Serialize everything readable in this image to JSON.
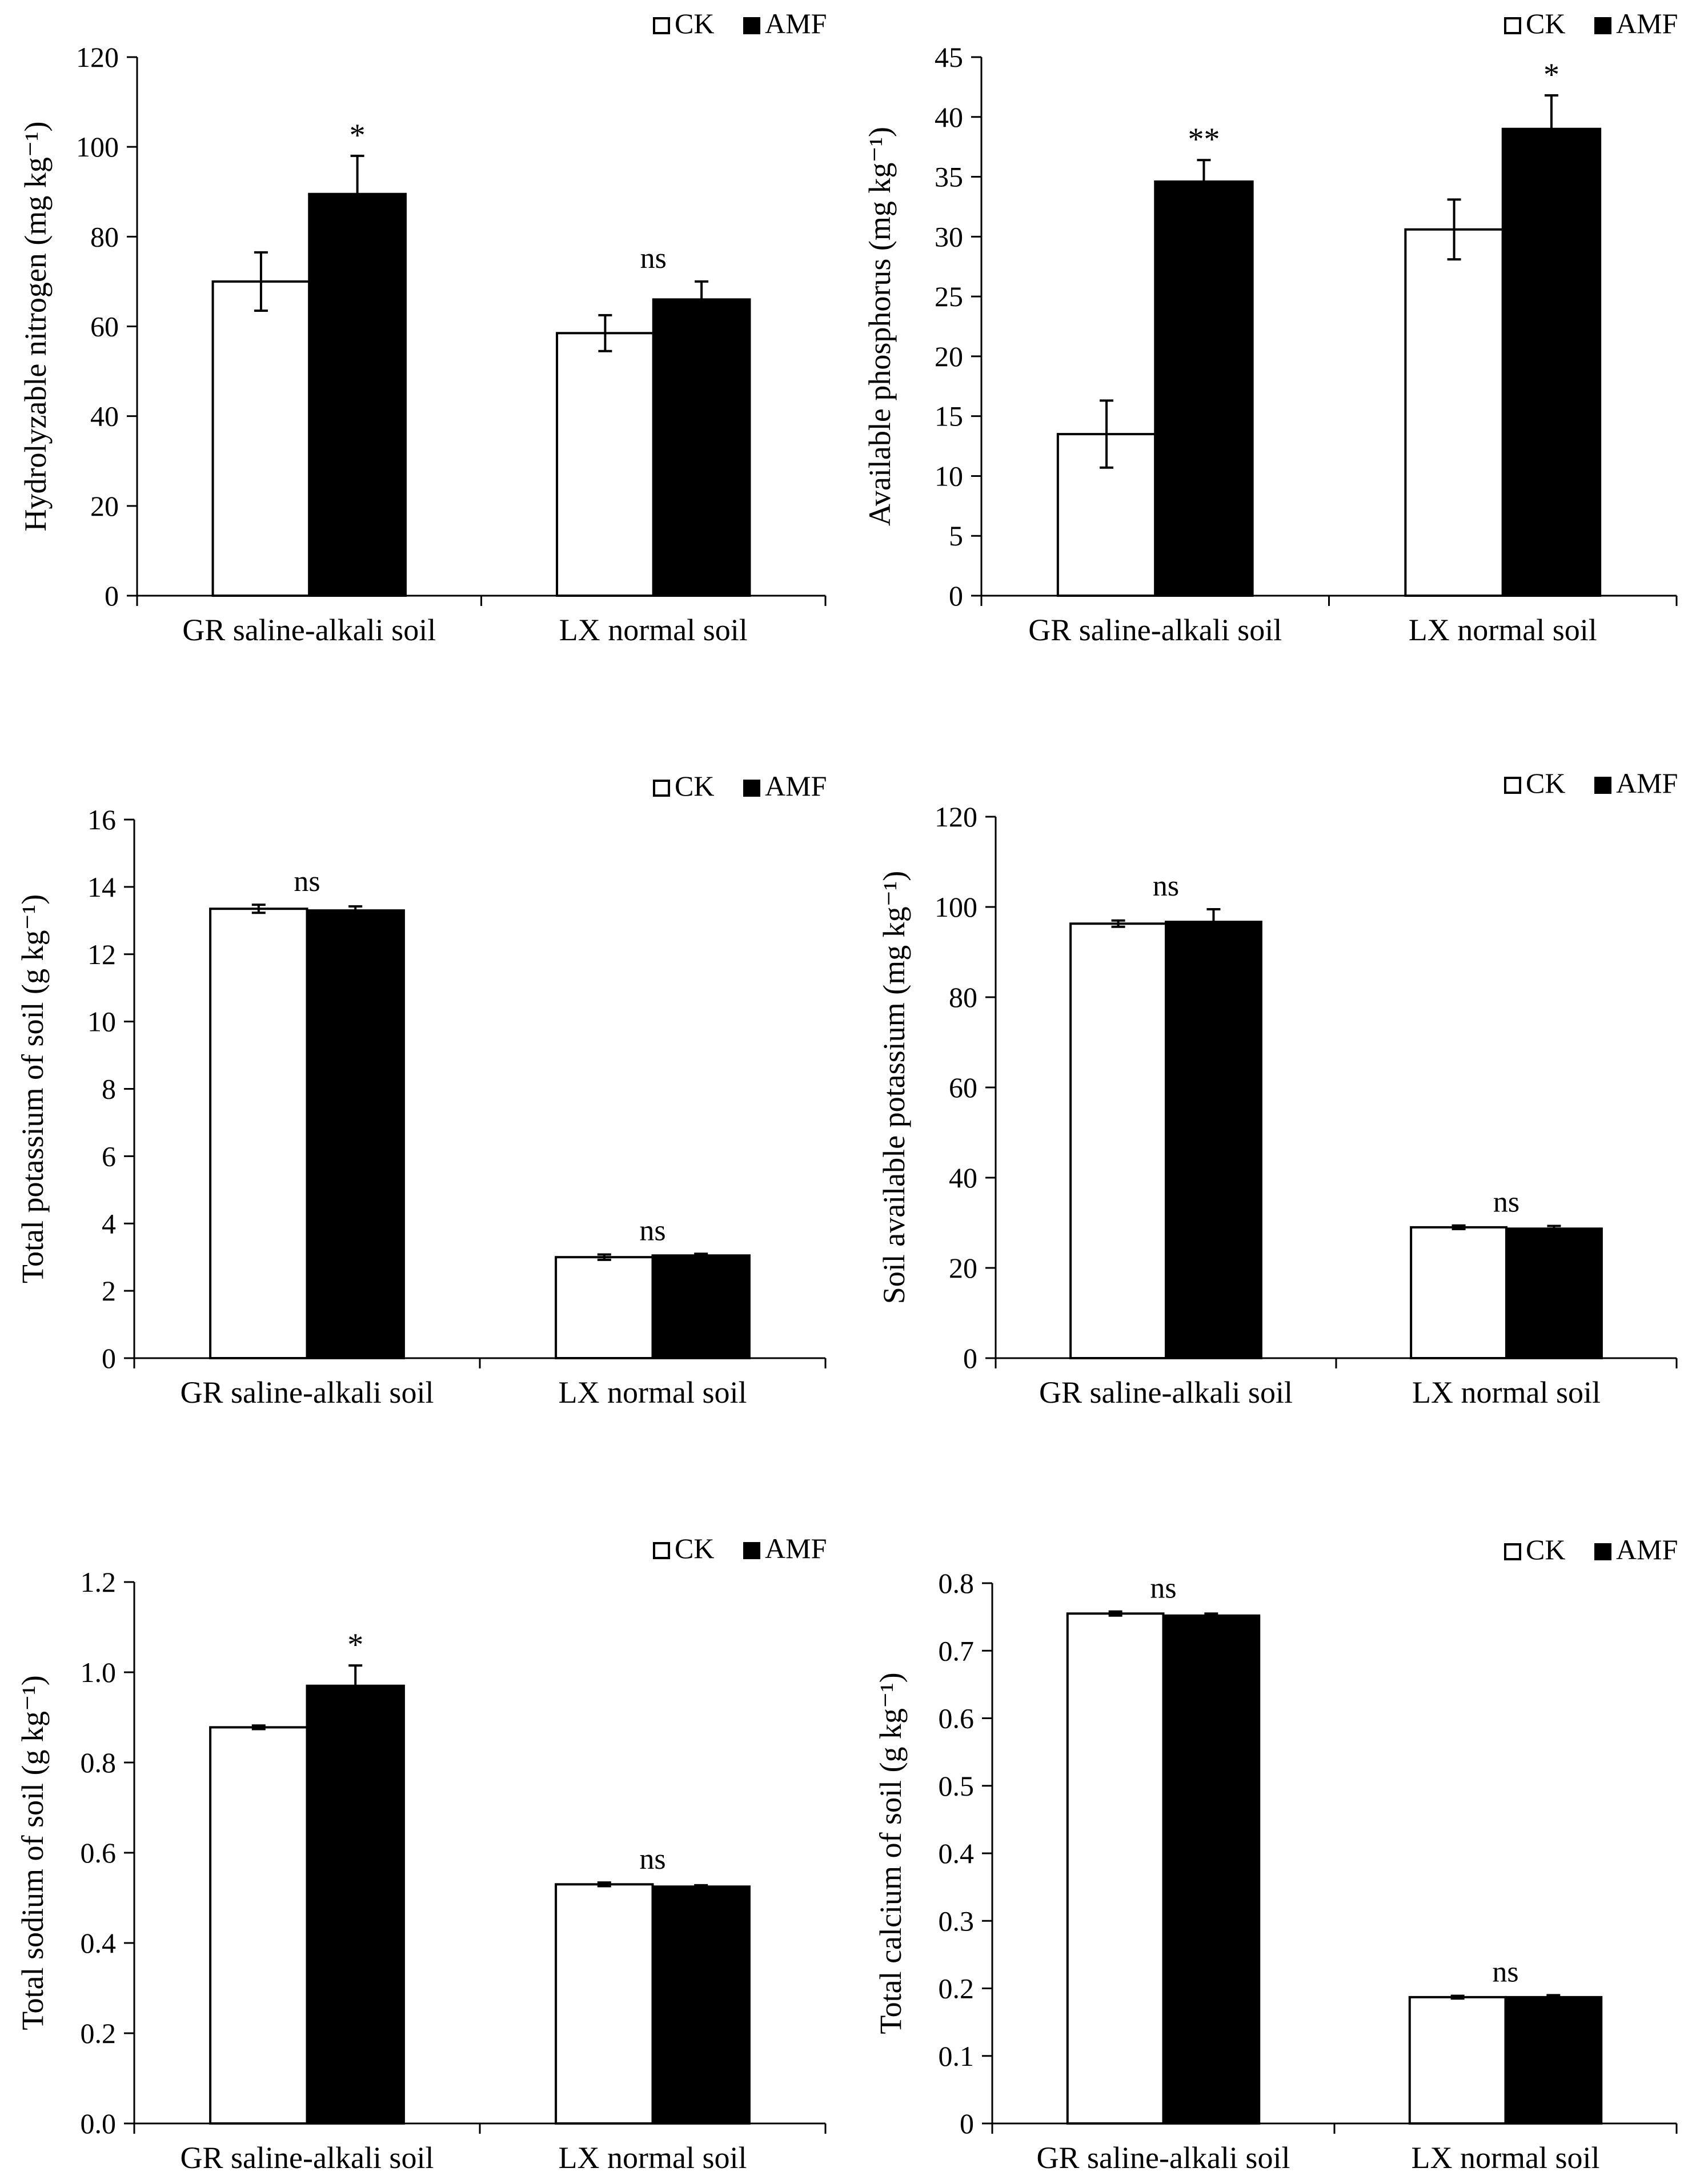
{
  "legend": {
    "ck": "CK",
    "amf": "AMF"
  },
  "chart_data": [
    {
      "type": "bar",
      "title": "",
      "xlabel": "",
      "ylabel": "Hydrolyzable nitrogen (mg kg⁻¹)",
      "categories": [
        "GR saline-alkali soil",
        "LX normal soil"
      ],
      "series": [
        {
          "name": "CK",
          "values": [
            70,
            58.5
          ],
          "errors": [
            6.5,
            4
          ]
        },
        {
          "name": "AMF",
          "values": [
            89.5,
            66
          ],
          "errors": [
            8.5,
            4
          ]
        }
      ],
      "significance": [
        "*",
        "ns"
      ],
      "ylim": [
        0,
        120
      ],
      "yticks": [
        0,
        20,
        40,
        60,
        80,
        100,
        120
      ],
      "ytick_labels": [
        "0",
        "20",
        "40",
        "60",
        "80",
        "100",
        "120"
      ],
      "legend_position": "top-right"
    },
    {
      "type": "bar",
      "title": "",
      "xlabel": "",
      "ylabel": "Available phosphorus (mg kg⁻¹)",
      "categories": [
        "GR saline-alkali soil",
        "LX normal soil"
      ],
      "series": [
        {
          "name": "CK",
          "values": [
            13.5,
            30.6
          ],
          "errors": [
            2.8,
            2.5
          ]
        },
        {
          "name": "AMF",
          "values": [
            34.6,
            39
          ],
          "errors": [
            1.8,
            2.8
          ]
        }
      ],
      "significance": [
        "**",
        "*"
      ],
      "ylim": [
        0,
        45
      ],
      "yticks": [
        0,
        5,
        10,
        15,
        20,
        25,
        30,
        35,
        40,
        45
      ],
      "ytick_labels": [
        "0",
        "5",
        "10",
        "15",
        "20",
        "25",
        "30",
        "35",
        "40",
        "45"
      ],
      "legend_position": "top-right"
    },
    {
      "type": "bar",
      "title": "",
      "xlabel": "",
      "ylabel": "Total potassium of soil (g kg⁻¹)",
      "categories": [
        "GR saline-alkali soil",
        "LX normal soil"
      ],
      "series": [
        {
          "name": "CK",
          "values": [
            13.35,
            3.0
          ],
          "errors": [
            0.12,
            0.08
          ]
        },
        {
          "name": "AMF",
          "values": [
            13.3,
            3.05
          ],
          "errors": [
            0.12,
            0.05
          ]
        }
      ],
      "significance": [
        "ns",
        "ns"
      ],
      "ylim": [
        0,
        16
      ],
      "yticks": [
        0,
        2,
        4,
        6,
        8,
        10,
        12,
        14,
        16
      ],
      "ytick_labels": [
        "0",
        "2",
        "4",
        "6",
        "8",
        "10",
        "12",
        "14",
        "16"
      ],
      "legend_position": "top-right"
    },
    {
      "type": "bar",
      "title": "",
      "xlabel": "",
      "ylabel": "Soil available potassium (mg kg⁻¹)",
      "categories": [
        "GR saline-alkali soil",
        "LX normal soil"
      ],
      "series": [
        {
          "name": "CK",
          "values": [
            96.3,
            29
          ],
          "errors": [
            0.7,
            0.4
          ]
        },
        {
          "name": "AMF",
          "values": [
            96.7,
            28.7
          ],
          "errors": [
            2.8,
            0.6
          ]
        }
      ],
      "significance": [
        "ns",
        "ns"
      ],
      "ylim": [
        0,
        120
      ],
      "yticks": [
        0,
        20,
        40,
        60,
        80,
        100,
        120
      ],
      "ytick_labels": [
        "0",
        "20",
        "40",
        "60",
        "80",
        "100",
        "120"
      ],
      "legend_position": "top-right"
    },
    {
      "type": "bar",
      "title": "",
      "xlabel": "",
      "ylabel": "Total sodium of soil (g kg⁻¹)",
      "categories": [
        "GR saline-alkali soil",
        "LX normal soil"
      ],
      "series": [
        {
          "name": "CK",
          "values": [
            0.878,
            0.53
          ],
          "errors": [
            0.004,
            0.004
          ]
        },
        {
          "name": "AMF",
          "values": [
            0.97,
            0.525
          ],
          "errors": [
            0.045,
            0.003
          ]
        }
      ],
      "significance": [
        "*",
        "ns"
      ],
      "ylim": [
        0,
        1.2
      ],
      "yticks": [
        0,
        0.2,
        0.4,
        0.6,
        0.8,
        1.0,
        1.2
      ],
      "ytick_labels": [
        "0.0",
        "0.2",
        "0.4",
        "0.6",
        "0.8",
        "1.0",
        "1.2"
      ],
      "legend_position": "top-right"
    },
    {
      "type": "bar",
      "title": "",
      "xlabel": "",
      "ylabel": "Total calcium of soil (g kg⁻¹)",
      "categories": [
        "GR saline-alkali soil",
        "LX normal soil"
      ],
      "series": [
        {
          "name": "CK",
          "values": [
            0.755,
            0.187
          ],
          "errors": [
            0.003,
            0.002
          ]
        },
        {
          "name": "AMF",
          "values": [
            0.752,
            0.187
          ],
          "errors": [
            0.003,
            0.003
          ]
        }
      ],
      "significance": [
        "ns",
        "ns"
      ],
      "ylim": [
        0,
        0.8
      ],
      "yticks": [
        0,
        0.1,
        0.2,
        0.3,
        0.4,
        0.5,
        0.6,
        0.7,
        0.8
      ],
      "ytick_labels": [
        "0",
        "0.1",
        "0.2",
        "0.3",
        "0.4",
        "0.5",
        "0.6",
        "0.7",
        "0.8"
      ],
      "legend_position": "top-right"
    }
  ]
}
